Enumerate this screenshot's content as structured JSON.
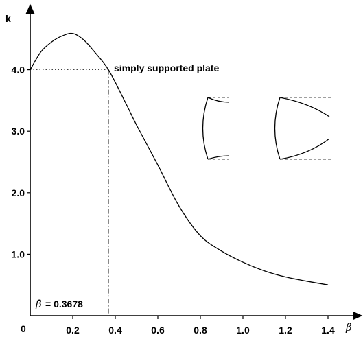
{
  "chart_data": {
    "type": "line",
    "ylabel": "k",
    "xlabel": "β",
    "origin_label": "0",
    "xlim": [
      0,
      1.5
    ],
    "ylim": [
      0,
      4.9
    ],
    "x_ticks": [
      {
        "value": 0.2,
        "label": "0.2"
      },
      {
        "value": 0.4,
        "label": "0.4"
      },
      {
        "value": 0.6,
        "label": "0.6"
      },
      {
        "value": 0.8,
        "label": "0.8"
      },
      {
        "value": 1.0,
        "label": "1.0"
      },
      {
        "value": 1.2,
        "label": "1.2"
      },
      {
        "value": 1.4,
        "label": "1.4"
      }
    ],
    "y_ticks": [
      {
        "value": 1.0,
        "label": "1.0"
      },
      {
        "value": 2.0,
        "label": "2.0"
      },
      {
        "value": 3.0,
        "label": "3.0"
      },
      {
        "value": 4.0,
        "label": "4.0"
      }
    ],
    "series": [
      {
        "x": [
          0,
          0.05,
          0.1,
          0.15,
          0.2,
          0.25,
          0.3,
          0.3678,
          0.45,
          0.5,
          0.6,
          0.7,
          0.8,
          0.9,
          1.0,
          1.1,
          1.2,
          1.3,
          1.4
        ],
        "y": [
          4.0,
          4.29,
          4.45,
          4.55,
          4.59,
          4.49,
          4.3,
          4.0,
          3.45,
          3.1,
          2.45,
          1.78,
          1.3,
          1.05,
          0.87,
          0.73,
          0.63,
          0.56,
          0.5
        ]
      }
    ],
    "reference": {
      "beta": 0.3678,
      "k": 4.0,
      "label": "simply  supported  plate",
      "beta_label": "= 0.3678",
      "beta_symbol": "β̄"
    }
  }
}
